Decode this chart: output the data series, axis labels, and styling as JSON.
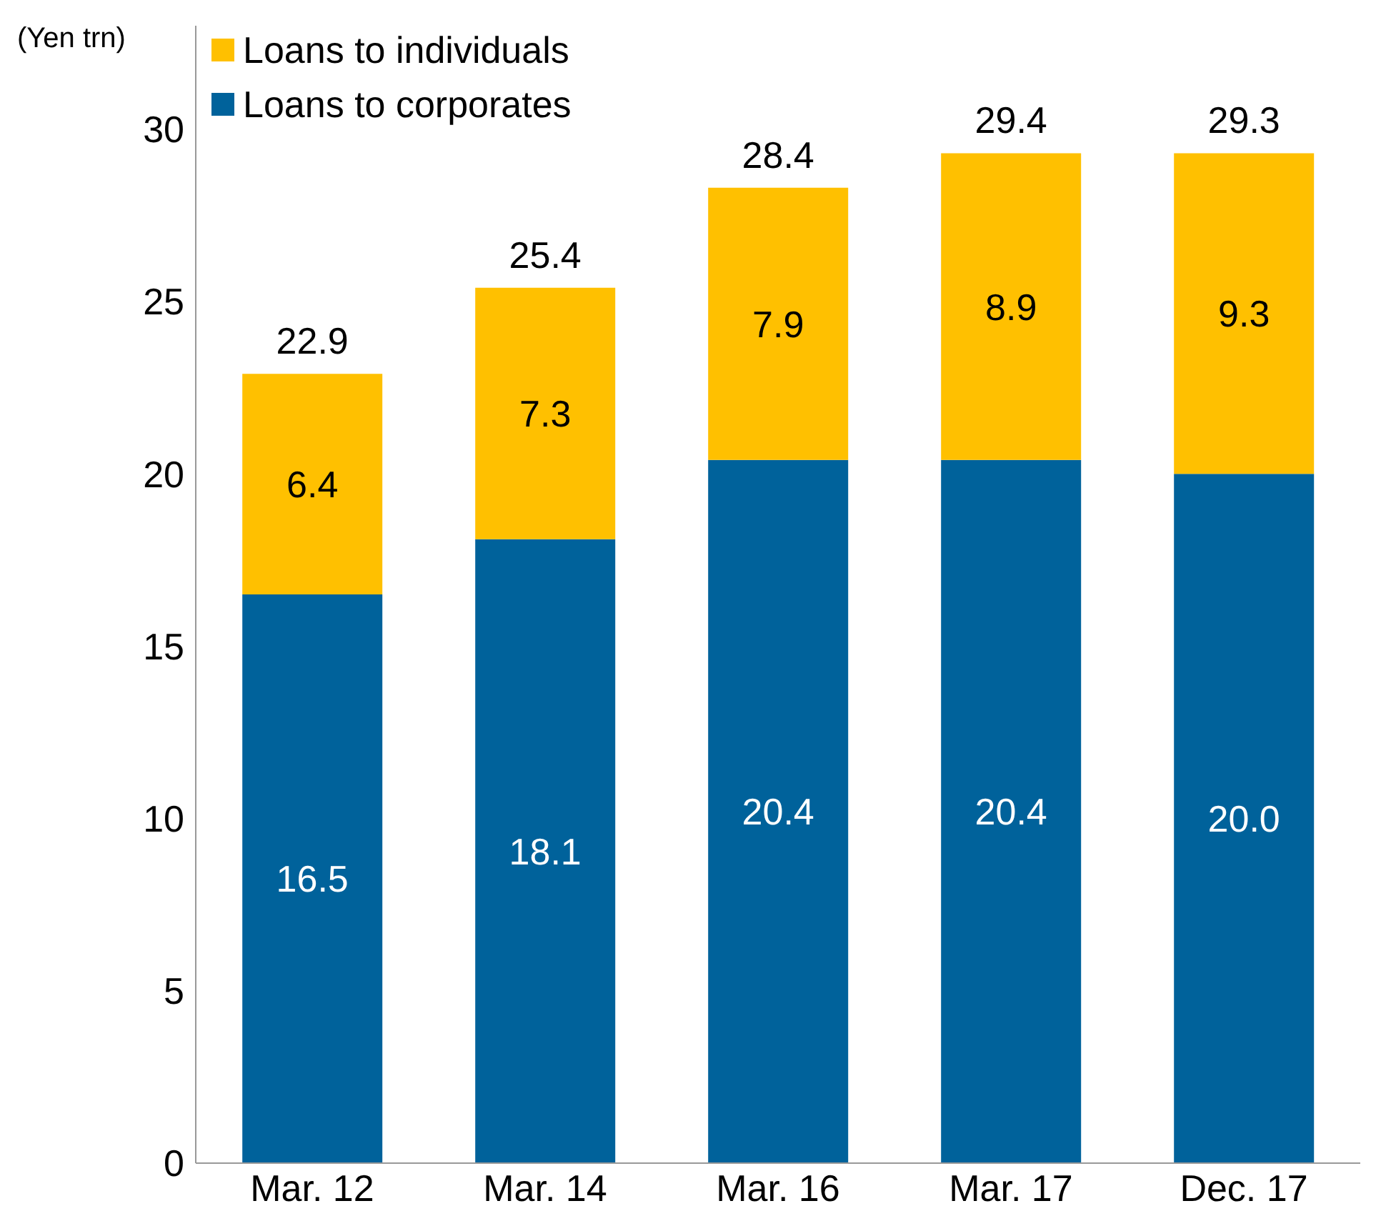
{
  "chart_data": {
    "type": "bar",
    "stacked": true,
    "ylabel": "(Yen trn)",
    "categories": [
      "Mar. 12",
      "Mar. 14",
      "Mar. 16",
      "Mar. 17",
      "Dec. 17"
    ],
    "series": [
      {
        "name": "Loans to corporates",
        "color": "#00629b",
        "values": [
          16.5,
          18.1,
          20.4,
          20.4,
          20.0
        ],
        "value_labels": [
          "16.5",
          "18.1",
          "20.4",
          "20.4",
          "20.0"
        ]
      },
      {
        "name": "Loans to individuals",
        "color": "#ffc000",
        "values": [
          6.4,
          7.3,
          7.9,
          8.9,
          9.3
        ],
        "value_labels": [
          "6.4",
          "7.3",
          "7.9",
          "8.9",
          "9.3"
        ]
      }
    ],
    "totals": [
      "22.9",
      "25.4",
      "28.4",
      "29.4",
      "29.3"
    ],
    "ylim": [
      0,
      33
    ],
    "yticks": [
      0,
      5,
      10,
      15,
      20,
      25,
      30
    ],
    "grid": false,
    "legend": "top left"
  }
}
